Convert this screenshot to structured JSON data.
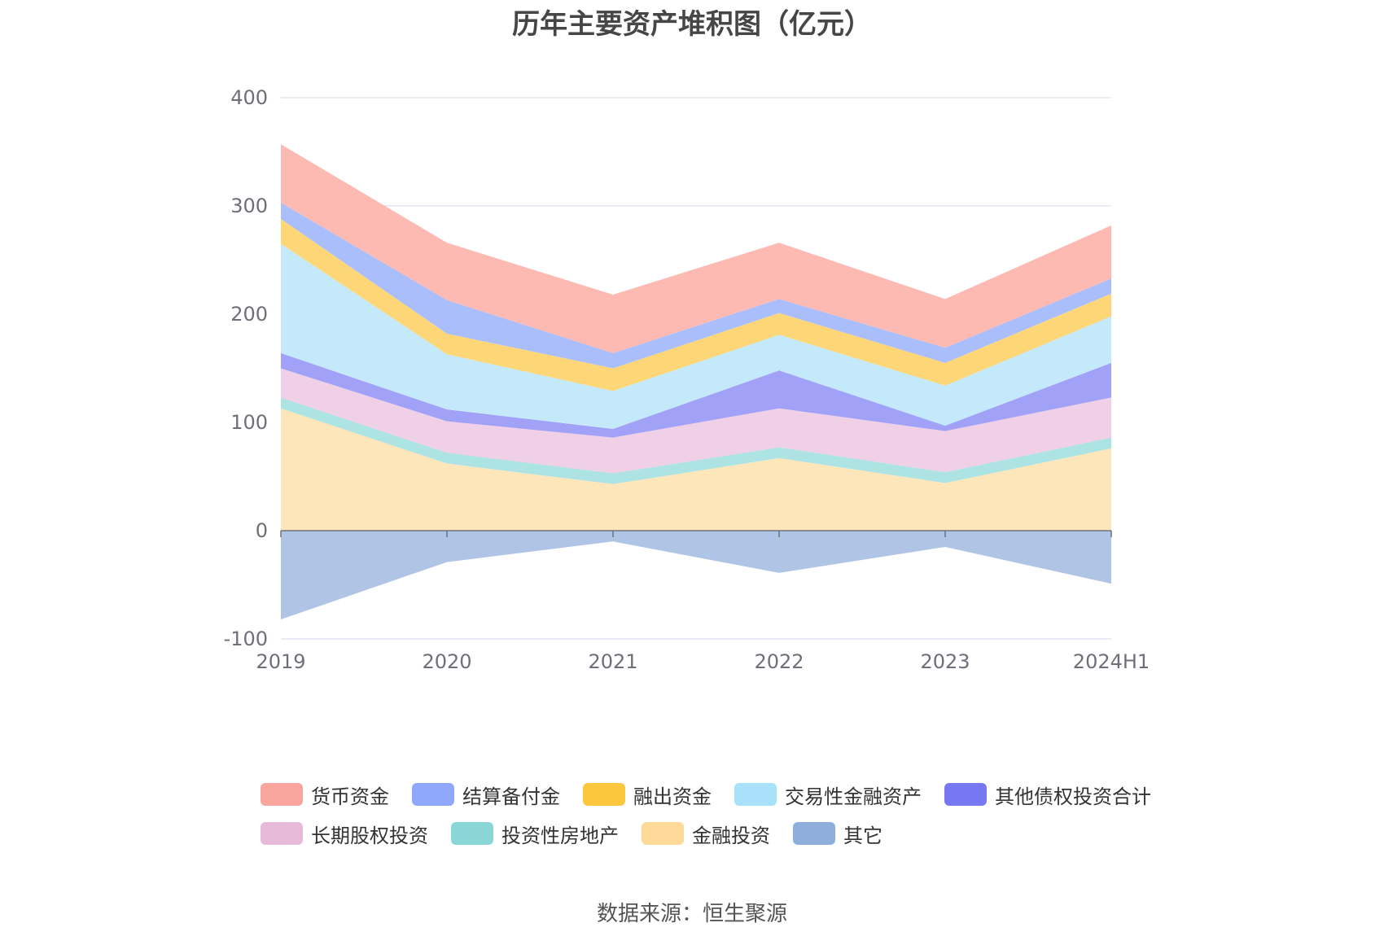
{
  "title": "历年主要资产堆积图（亿元）",
  "source": "数据来源：恒生聚源",
  "colors": {
    "货币资金": "#fcbab3",
    "结算备付金": "#aabefc",
    "融出资金": "#fdd677",
    "交易性金融资产": "#c4e9fa",
    "其他债权投资合计": "#a1a1f7",
    "长期股权投资": "#efd0e6",
    "投资性房地产": "#aee3e3",
    "金融投资": "#fee6bb",
    "其它": "#b0c5e6"
  },
  "legend_colors": {
    "货币资金": "#f9a49c",
    "结算备付金": "#8fa8fb",
    "融出资金": "#fcc63d",
    "交易性金融资产": "#a9e1fb",
    "其他债权投资合计": "#7777f1",
    "长期股权投资": "#e7bad9",
    "投资性房地产": "#8ad6d6",
    "金融投资": "#fed99a",
    "其它": "#90aedc"
  },
  "chart_data": {
    "type": "area",
    "stacked": true,
    "title": "历年主要资产堆积图（亿元）",
    "categories": [
      "2019",
      "2020",
      "2021",
      "2022",
      "2023",
      "2024H1"
    ],
    "ylim": [
      -100,
      400
    ],
    "yticks": [
      -100,
      0,
      100,
      200,
      300,
      400
    ],
    "grid": true,
    "legend_position": "bottom",
    "series": [
      {
        "name": "金融投资",
        "values": [
          113,
          62,
          43,
          67,
          44,
          76
        ]
      },
      {
        "name": "投资性房地产",
        "values": [
          10,
          10,
          10,
          10,
          10,
          10
        ]
      },
      {
        "name": "长期股权投资",
        "values": [
          27,
          29,
          33,
          36,
          38,
          37
        ]
      },
      {
        "name": "其他债权投资合计",
        "values": [
          14,
          11,
          8,
          35,
          5,
          32
        ]
      },
      {
        "name": "交易性金融资产",
        "values": [
          101,
          51,
          35,
          33,
          37,
          43
        ]
      },
      {
        "name": "融出资金",
        "values": [
          23,
          19,
          21,
          20,
          21,
          21
        ]
      },
      {
        "name": "结算备付金",
        "values": [
          15,
          31,
          14,
          13,
          14,
          14
        ]
      },
      {
        "name": "货币资金",
        "values": [
          54,
          53,
          54,
          52,
          45,
          49
        ]
      },
      {
        "name": "其它",
        "values": [
          -82,
          -29,
          -10,
          -39,
          -15,
          -49
        ]
      }
    ]
  },
  "legend": {
    "row1": [
      "货币资金",
      "结算备付金",
      "融出资金",
      "交易性金融资产",
      "其他债权投资合计"
    ],
    "row2": [
      "长期股权投资",
      "投资性房地产",
      "金融投资",
      "其它"
    ]
  }
}
